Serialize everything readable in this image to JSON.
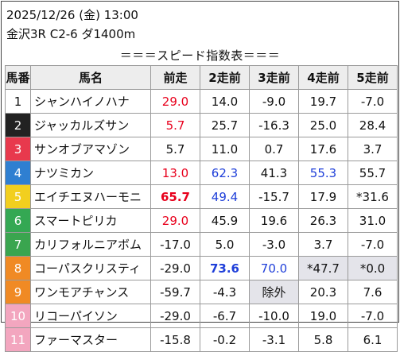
{
  "header": {
    "line1": "2025/12/26 (金) 13:00",
    "line2": "金沢3R C2-6 ダ1400m",
    "title": "＝＝＝スピード指数表＝＝＝"
  },
  "columns": [
    "馬番",
    "馬名",
    "前走",
    "2走前",
    "3走前",
    "4走前",
    "5走前"
  ],
  "colors": {
    "red": "#e8001c",
    "blue": "#1f3fd9",
    "highlight_bg": "#e4e4ea",
    "gate_colors": {
      "1": "#ffffff",
      "2": "#222222",
      "3": "#e8394d",
      "4": "#2f7fd1",
      "5": "#f2cf1f",
      "6": "#34a853",
      "7": "#3aa54f",
      "8": "#f08a24",
      "9": "#f08a24",
      "10": "#f3a6bf",
      "11": "#f3a6bf"
    }
  },
  "rows": [
    {
      "num": "1",
      "name": "シャンハイノハナ",
      "vals": [
        "29.0",
        "14.0",
        "-9.0",
        "19.7",
        "-7.0"
      ]
    },
    {
      "num": "2",
      "name": "ジャッカルズサン",
      "vals": [
        "5.7",
        "25.7",
        "-16.3",
        "25.0",
        "28.4"
      ]
    },
    {
      "num": "3",
      "name": "サンオブアマゾン",
      "vals": [
        "5.7",
        "11.0",
        "0.7",
        "17.6",
        "3.7"
      ]
    },
    {
      "num": "4",
      "name": "ナツミカン",
      "vals": [
        "13.0",
        "62.3",
        "41.3",
        "55.3",
        "55.7"
      ]
    },
    {
      "num": "5",
      "name": "エイチエヌハーモニ",
      "vals": [
        "65.7",
        "49.4",
        "-15.7",
        "17.9",
        "*31.6"
      ]
    },
    {
      "num": "6",
      "name": "スマートピリカ",
      "vals": [
        "29.0",
        "45.9",
        "19.6",
        "26.3",
        "31.0"
      ]
    },
    {
      "num": "7",
      "name": "カリフォルニアボム",
      "vals": [
        "-17.0",
        "5.0",
        "-3.0",
        "3.7",
        "-7.0"
      ]
    },
    {
      "num": "8",
      "name": "コーパスクリスティ",
      "vals": [
        "-29.0",
        "73.6",
        "70.0",
        "*47.7",
        "*0.0"
      ]
    },
    {
      "num": "9",
      "name": "ワンモアチャンス",
      "vals": [
        "-59.7",
        "-4.3",
        "除外",
        "20.3",
        "7.6"
      ]
    },
    {
      "num": "10",
      "name": "リコーパイソン",
      "vals": [
        "-29.0",
        "-6.7",
        "-10.0",
        "19.0",
        "-7.0"
      ]
    },
    {
      "num": "11",
      "name": "ファーマスター",
      "vals": [
        "-15.8",
        "-0.2",
        "-3.1",
        "5.8",
        "6.1"
      ]
    }
  ]
}
